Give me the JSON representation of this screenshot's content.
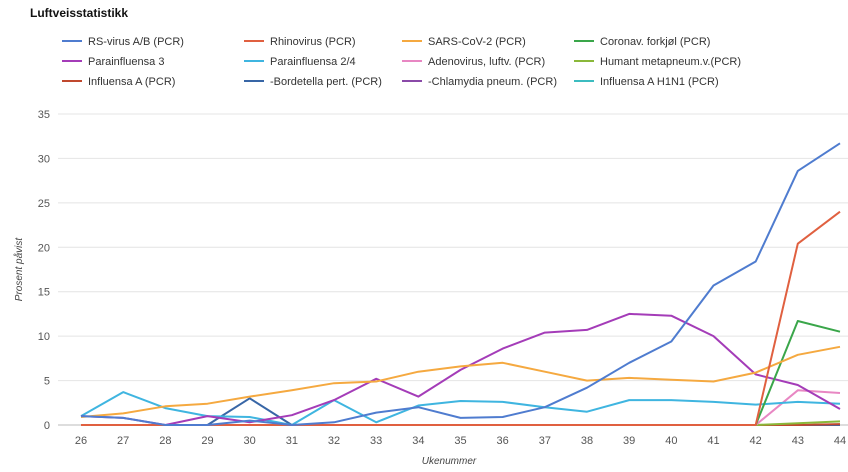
{
  "chart_data": {
    "type": "line",
    "title": "Luftveisstatistikk",
    "xlabel": "Ukenummer",
    "ylabel": "Prosent påvist",
    "x": [
      26,
      27,
      28,
      29,
      30,
      31,
      32,
      33,
      34,
      35,
      36,
      37,
      38,
      39,
      40,
      41,
      42,
      43,
      44
    ],
    "ylim": [
      0,
      35
    ],
    "yticks": [
      0,
      5,
      10,
      15,
      20,
      25,
      30,
      35
    ],
    "grid": true,
    "legend_position": "top",
    "series": [
      {
        "name": "RS-virus A/B (PCR)",
        "color": "#4f7ccf",
        "values": [
          1.0,
          0.8,
          0.0,
          0.0,
          0.5,
          0.0,
          0.3,
          1.4,
          2.0,
          0.8,
          0.9,
          2.0,
          4.2,
          7.0,
          9.4,
          15.7,
          18.4,
          28.6,
          31.7
        ]
      },
      {
        "name": "Rhinovirus (PCR)",
        "color": "#e06040",
        "values": [
          0,
          0,
          0,
          0,
          0,
          0,
          0,
          0,
          0,
          0,
          0,
          0,
          0,
          0,
          0,
          0,
          0,
          20.4,
          24.0
        ]
      },
      {
        "name": "SARS-CoV-2 (PCR)",
        "color": "#f5a940",
        "values": [
          0.9,
          1.3,
          2.1,
          2.4,
          3.2,
          3.9,
          4.7,
          4.9,
          6.0,
          6.6,
          7.0,
          6.0,
          5.0,
          5.3,
          5.1,
          4.9,
          5.9,
          7.9,
          8.8
        ]
      },
      {
        "name": "Coronav. forkjøl (PCR)",
        "color": "#3aa64a",
        "values": [
          0,
          0,
          0,
          0,
          0,
          0,
          0,
          0,
          0,
          0,
          0,
          0,
          0,
          0,
          0,
          0,
          0,
          11.7,
          10.5
        ]
      },
      {
        "name": "Parainfluensa 3",
        "color": "#a43cb8",
        "values": [
          1.0,
          0.8,
          0.0,
          1.0,
          0.3,
          1.1,
          2.8,
          5.2,
          3.2,
          6.2,
          8.6,
          10.4,
          10.7,
          12.5,
          12.3,
          10.0,
          5.7,
          4.5,
          1.8
        ]
      },
      {
        "name": "Parainfluensa 2/4",
        "color": "#3fb5e0",
        "values": [
          1.0,
          3.7,
          1.9,
          1.0,
          0.9,
          0.0,
          2.8,
          0.3,
          2.2,
          2.7,
          2.6,
          2.0,
          1.5,
          2.8,
          2.8,
          2.6,
          2.3,
          2.6,
          2.4
        ]
      },
      {
        "name": "Adenovirus, luftv. (PCR)",
        "color": "#e887c3",
        "values": [
          0,
          0,
          0,
          0,
          0,
          0,
          0,
          0,
          0,
          0,
          0,
          0,
          0,
          0,
          0,
          0,
          0,
          3.9,
          3.6
        ]
      },
      {
        "name": "Humant metapneum.v.(PCR)",
        "color": "#8ab83a",
        "values": [
          0,
          0,
          0,
          0,
          0,
          0,
          0,
          0,
          0,
          0,
          0,
          0,
          0,
          0,
          0,
          0,
          0,
          0.2,
          0.4
        ]
      },
      {
        "name": "Influensa A (PCR)",
        "color": "#c0482e",
        "values": [
          0,
          0,
          0,
          0,
          0,
          0,
          0,
          0,
          0,
          0,
          0,
          0,
          0,
          0,
          0,
          0,
          0,
          0.0,
          0.1
        ]
      },
      {
        "name": "-Bordetella pert. (PCR)",
        "color": "#3866a6",
        "values": [
          0,
          0,
          0,
          0,
          3.0,
          0.0,
          0,
          0,
          0,
          0,
          0,
          0,
          0,
          0,
          0,
          0,
          0,
          0,
          0
        ]
      },
      {
        "name": "-Chlamydia pneum. (PCR)",
        "color": "#8a4aa8",
        "values": [
          0,
          0,
          0,
          0,
          0,
          0,
          0,
          0,
          0,
          0,
          0,
          0,
          0,
          0,
          0,
          0,
          0,
          0,
          0
        ]
      },
      {
        "name": "Influensa A H1N1 (PCR)",
        "color": "#3cbcc0",
        "values": [
          0,
          0,
          0,
          0,
          0,
          0,
          0,
          0,
          0,
          0,
          0,
          0,
          0,
          0,
          0,
          0,
          0,
          0,
          0
        ]
      }
    ]
  }
}
